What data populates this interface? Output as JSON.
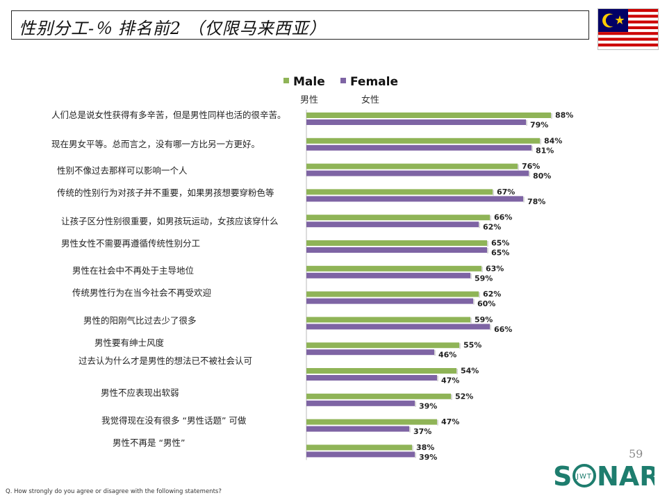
{
  "title": "性别分工-％ 排名前2 （仅限马来西亚）",
  "legend": {
    "male": {
      "label": "Male",
      "sub": "男性",
      "color": "#8FB457"
    },
    "female": {
      "label": "Female",
      "sub": "女性",
      "color": "#7E64A4"
    }
  },
  "chart_data": {
    "type": "bar",
    "orientation": "horizontal",
    "title": "性别分工-％ 排名前2 （仅限马来西亚）",
    "xlim": [
      0,
      100
    ],
    "unit": "%",
    "categories": [
      "人们总是说女性获得有多辛苦，但是男性同样也活的很辛苦。",
      "现在男女平等。总而言之，没有哪一方比另一方更好。",
      "性别不像过去那样可以影响一个人",
      "传统的性别行为对孩子并不重要，如果男孩想要穿粉色等",
      "让孩子区分性别很重要，如男孩玩运动，女孩应该穿什么",
      "男性女性不需要再遵循传统性别分工",
      "男性在社会中不再处于主导地位",
      "传统男性行为在当今社会不再受欢迎",
      "男性的阳刚气比过去少了很多",
      "男性要有绅士风度",
      "过去认为什么才是男性的想法已不被社会认可",
      "男性不应表现出软弱",
      "我觉得现在没有很多 “男性话题” 可做",
      "男性不再是 “男性”"
    ],
    "series": [
      {
        "name": "Male",
        "color": "#8FB457",
        "values": [
          88,
          84,
          76,
          67,
          66,
          65,
          63,
          62,
          59,
          55,
          54,
          52,
          47,
          38
        ]
      },
      {
        "name": "Female",
        "color": "#7E64A4",
        "values": [
          79,
          81,
          80,
          78,
          62,
          65,
          59,
          60,
          66,
          46,
          47,
          39,
          37,
          39
        ]
      }
    ]
  },
  "page_number": "59",
  "logo": {
    "text_left": "S",
    "text_right": "NAR",
    "inner": "JWT"
  },
  "question": "Q. How strongly do you agree or disagree with the following statements?"
}
